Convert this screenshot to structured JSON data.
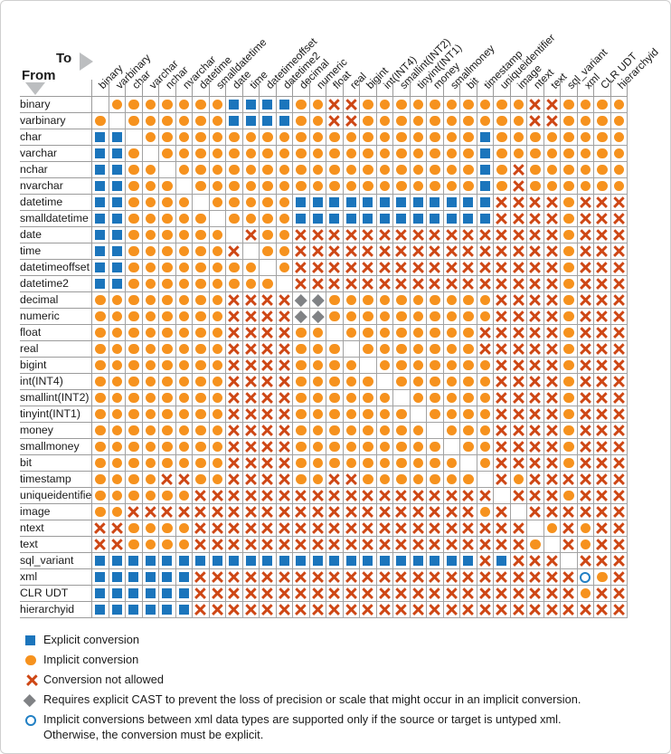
{
  "header": {
    "to_label": "To",
    "from_label": "From"
  },
  "chart_data": {
    "type": "heatmap",
    "row_axis_label": "From",
    "col_axis_label": "To",
    "categories": [
      "binary",
      "varbinary",
      "char",
      "varchar",
      "nchar",
      "nvarchar",
      "datetime",
      "smalldatetime",
      "date",
      "time",
      "datetimeoffset",
      "datetime2",
      "decimal",
      "numeric",
      "float",
      "real",
      "bigint",
      "int(INT4)",
      "smallint(INT2)",
      "tinyint(INT1)",
      "money",
      "smallmoney",
      "bit",
      "timestamp",
      "uniqueidentifier",
      "image",
      "ntext",
      "text",
      "sql_variant",
      "xml",
      "CLR UDT",
      "hierarchyid"
    ],
    "cell_codes": {
      "E": "explicit conversion (blue square)",
      "I": "implicit conversion (orange circle)",
      "X": "conversion not allowed (red X)",
      "D": "requires explicit CAST (gray diamond)",
      "O": "implicit only if untyped xml (open circle)",
      ".": "same type / blank"
    },
    "matrix": [
      ".IIIIIIIEEEEIIXXIIIIIIIIIIXXIIII",
      "I.IIIIIIEEEEIIXXIIIIIIIIIIXXIIII",
      "EE.IIIIIIIIIIIIIIIIIIIIEIIIIIIII",
      "EEI.IIIIIIIIIIIIIIIIIIIEIIIIIIII",
      "EEII.IIIIIIIIIIIIIIIIIIEIXIIIIII",
      "EEIII.IIIIIIIIIIIIIIIIIEIXIIIIII",
      "EEIIII.IIIIIEEEEEEEEEEEEXXXXIXXX",
      "EEIIIII.IIIIEEEEEEEEEEEEXXXXIXXX",
      "EEIIIIII.XIIXXXXXXXXXXXXXXXXIXXX",
      "EEIIIIIIX.IIXXXXXXXXXXXXXXXXIXXX",
      "EEIIIIIIII.IXXXXXXXXXXXXXXXXIXXX",
      "EEIIIIIIIII.XXXXXXXXXXXXXXXXIXXX",
      "IIIIIIIIXXXXDDIIIIIIIIIIXXXXIXXX",
      "IIIIIIIIXXXXDDIIIIIIIIIIXXXXIXXX",
      "IIIIIIIIXXXXII.IIIIIIIIXXXXXIXXX",
      "IIIIIIIIXXXXIII.IIIIIIIXXXXXIXXX",
      "IIIIIIIIXXXXIIII.IIIIIIIXXXXIXXX",
      "IIIIIIIIXXXXIIIII.IIIIIIXXXXIXXX",
      "IIIIIIIIXXXXIIIIII.IIIIIXXXXIXXX",
      "IIIIIIIIXXXXIIIIIII.IIIIXXXXIXXX",
      "IIIIIIIIXXXXIIIIIIII.IIIXXXXIXXX",
      "IIIIIIIIXXXXIIIIIIIII.IIXXXXIXXX",
      "IIIIIIIIXXXXIIIIIIIIII.IXXXXIXXX",
      "IIIIXXIIXXXXIIXXIIIIIII.XIXXXXXX",
      "IIIIIIXXXXXXXXXXXXXXXXXX.XXXIXXX",
      "IIXXXXXXXXXXXXXXXXXXXXXIX.XXXXXX",
      "XXIIIIXXXXXXXXXXXXXXXXXXXX.IXIXX",
      "XXIIIIXXXXXXXXXXXXXXXXXXXXI.XIXX",
      "EEEEEEEEEEEEEEEEEEEEEEEXEXXX.XXX",
      "EEEEEEXXXXXXXXXXXXXXXXXXXXXXXOIX",
      "EEEEEEXXXXXXXXXXXXXXXXXXXXXXXIXX",
      "EEEEEEXXXXXXXXXXXXXXXXXXXXXXXXXX"
    ],
    "legend": [
      {
        "code": "E",
        "label": "Explicit conversion"
      },
      {
        "code": "I",
        "label": "Implicit conversion"
      },
      {
        "code": "X",
        "label": "Conversion not allowed"
      },
      {
        "code": "D",
        "label": "Requires explicit CAST to prevent the loss of precision or scale that might occur in an implicit conversion."
      },
      {
        "code": "O",
        "label": "Implicit conversions between xml data types are supported only if the source or target is untyped xml.\nOtherwise, the conversion must be explicit."
      }
    ],
    "colors": {
      "explicit_blue": "#1B75BC",
      "implicit_orange": "#F6921E",
      "not_allowed_red": "#CE4715",
      "cast_diamond_gray": "#808285",
      "untyped_xml_ring_blue": "#2280C4",
      "grid_line_gray": "#9B9B9B",
      "arrow_gray": "#BCBEC0"
    },
    "legend_position": "bottom",
    "grid": true
  }
}
